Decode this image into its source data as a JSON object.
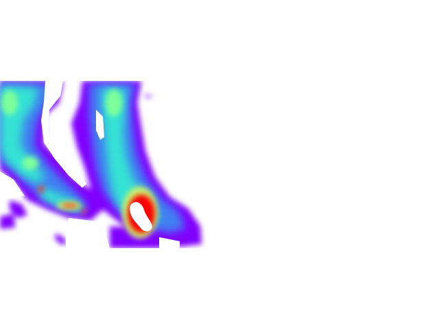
{
  "map": {
    "type": "heatmap-overlay",
    "colormap": "rainbow",
    "background": "#ffffff",
    "palette": [
      "#8000ff",
      "#4f3ff9",
      "#3f7ff1",
      "#2fb9e6",
      "#36e2d4",
      "#7fff9a",
      "#c9f06c",
      "#ffb24a",
      "#ff3a1e",
      "#ff0000"
    ],
    "peak_color": "#ffffff"
  }
}
